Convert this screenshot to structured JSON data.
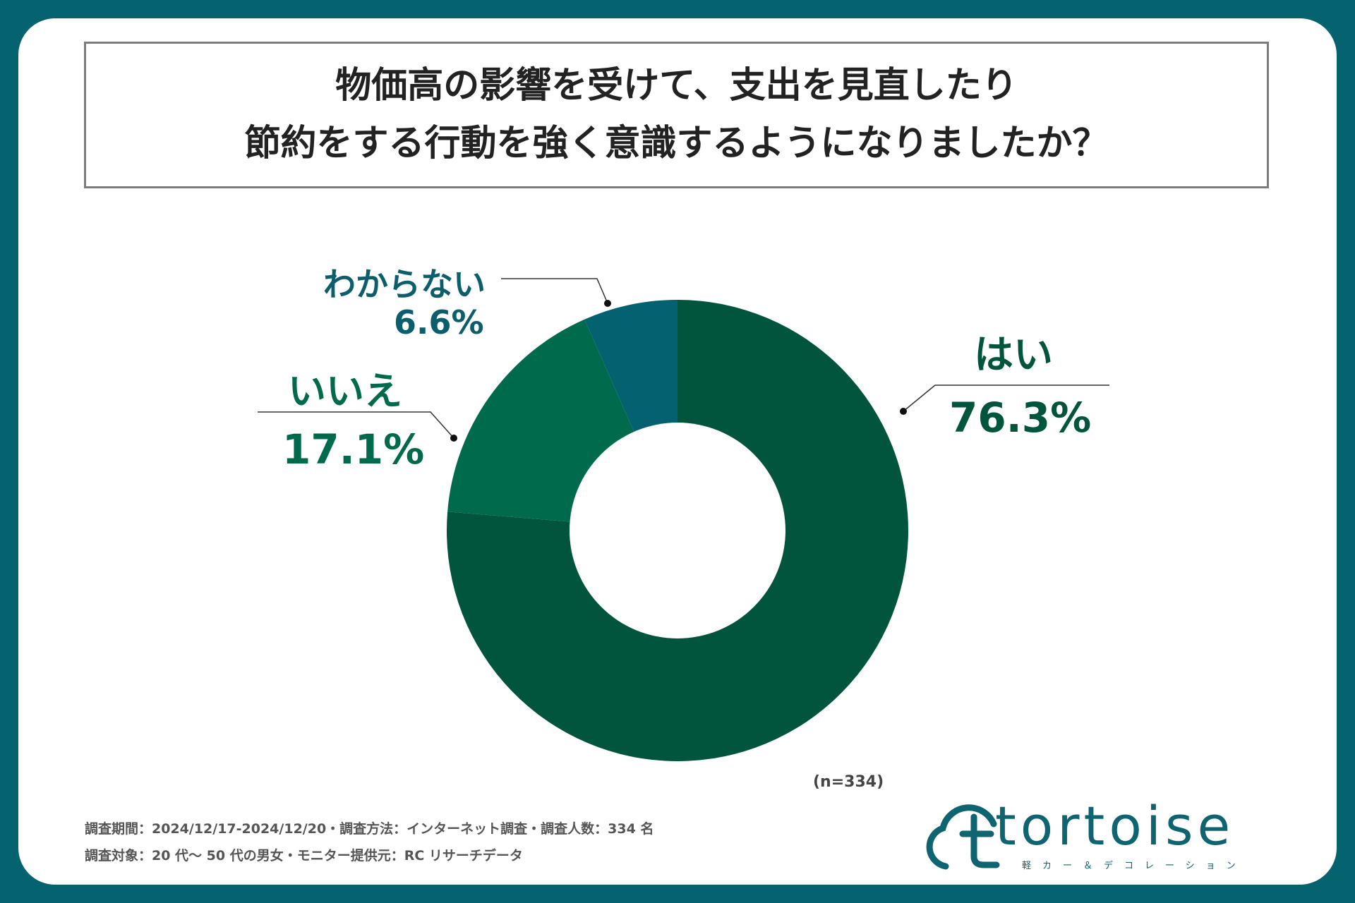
{
  "title": {
    "line1": "物価高の影響を受けて、支出を見直したり",
    "line2": "節約をする行動を強く意識するようになりましたか？"
  },
  "chart_data": {
    "type": "pie",
    "variant": "donut",
    "title": "物価高の影響を受けて、支出を見直したり節約をする行動を強く意識するようになりましたか？",
    "categories": [
      "はい",
      "いいえ",
      "わからない"
    ],
    "values": [
      76.3,
      17.1,
      6.6
    ],
    "value_labels": [
      "76.3%",
      "17.1%",
      "6.6%"
    ],
    "colors": [
      "#00553c",
      "#006a4c",
      "#036170"
    ],
    "label_colors": [
      "#00553c",
      "#006a4c",
      "#0b5e6c"
    ]
  },
  "sample_size": "(n=334)",
  "footer": {
    "line1": "調査期間：2024/12/17-2024/12/20・調査方法：インターネット調査・調査人数：334 名",
    "line2": "調査対象：20 代～ 50 代の男女・モニター提供元：RC リサーチデータ"
  },
  "logo": {
    "name": "tortoise",
    "subtitle": "軽カー＆デコレーション",
    "color": "#0e6470"
  }
}
